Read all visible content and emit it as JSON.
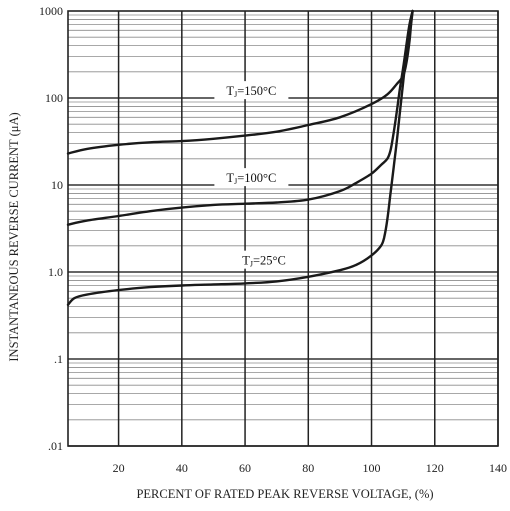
{
  "chart_data": {
    "type": "line",
    "xlabel": "PERCENT OF RATED PEAK REVERSE VOLTAGE, (%)",
    "ylabel": "INSTANTANEOUS REVERSE CURRENT (μA)",
    "xlim": [
      4,
      140
    ],
    "ylim": [
      0.01,
      1000
    ],
    "yscale": "log",
    "grid": true,
    "x_ticks": [
      {
        "value": 20,
        "label": "20"
      },
      {
        "value": 40,
        "label": "40"
      },
      {
        "value": 60,
        "label": "60"
      },
      {
        "value": 80,
        "label": "80"
      },
      {
        "value": 100,
        "label": "100"
      },
      {
        "value": 120,
        "label": "120"
      },
      {
        "value": 140,
        "label": "140"
      }
    ],
    "y_ticks": [
      {
        "value": 1000,
        "label": "1000"
      },
      {
        "value": 100,
        "label": "100"
      },
      {
        "value": 10,
        "label": "10"
      },
      {
        "value": 1,
        "label": "1.0"
      },
      {
        "value": 0.1,
        "label": ".1"
      },
      {
        "value": 0.01,
        "label": ".01"
      }
    ],
    "series": [
      {
        "name": "TJ=150°C",
        "label_main": "T",
        "label_sub": "J",
        "label_rest": "=150°C",
        "label_at": [
          62,
          120
        ],
        "x": [
          4,
          10,
          20,
          30,
          40,
          50,
          60,
          70,
          80,
          90,
          100,
          105,
          108,
          110,
          111,
          112,
          112.5,
          113
        ],
        "y": [
          23,
          26,
          29,
          31,
          32,
          34,
          37,
          41,
          49,
          60,
          85,
          110,
          145,
          180,
          250,
          450,
          700,
          1000
        ]
      },
      {
        "name": "TJ=100°C",
        "label_main": "T",
        "label_sub": "J",
        "label_rest": "=100°C",
        "label_at": [
          62,
          12
        ],
        "x": [
          4,
          10,
          20,
          30,
          40,
          50,
          60,
          70,
          80,
          90,
          95,
          100,
          103,
          105,
          106,
          107,
          108,
          109,
          110,
          111,
          112,
          113
        ],
        "y": [
          3.5,
          3.9,
          4.4,
          5.0,
          5.5,
          5.9,
          6.1,
          6.3,
          6.8,
          8.5,
          10.5,
          13.5,
          17,
          20,
          25,
          40,
          70,
          130,
          220,
          400,
          700,
          1000
        ]
      },
      {
        "name": "TJ=25°C",
        "label_main": "T",
        "label_sub": "J",
        "label_rest": "=25°C",
        "label_at": [
          66,
          1.35
        ],
        "x": [
          4,
          6,
          10,
          20,
          30,
          40,
          50,
          60,
          70,
          80,
          90,
          95,
          100,
          103,
          104,
          105,
          106,
          107,
          108,
          109,
          110,
          111,
          112,
          113
        ],
        "y": [
          0.42,
          0.5,
          0.55,
          0.62,
          0.67,
          0.7,
          0.72,
          0.74,
          0.78,
          0.88,
          1.05,
          1.2,
          1.55,
          2.0,
          2.5,
          4.0,
          8,
          16,
          32,
          70,
          150,
          330,
          650,
          1000
        ]
      }
    ]
  }
}
